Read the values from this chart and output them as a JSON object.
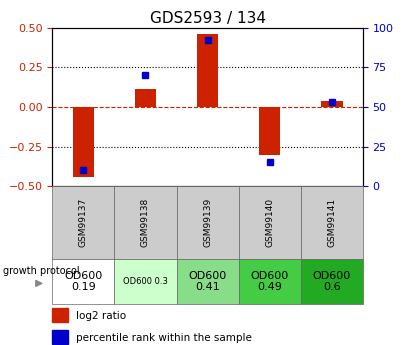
{
  "title": "GDS2593 / 134",
  "samples": [
    "GSM99137",
    "GSM99138",
    "GSM99139",
    "GSM99140",
    "GSM99141"
  ],
  "log2_ratio": [
    -0.44,
    0.11,
    0.46,
    -0.3,
    0.04
  ],
  "percentile_rank": [
    10,
    70,
    92,
    15,
    53
  ],
  "ylim_left": [
    -0.5,
    0.5
  ],
  "ylim_right": [
    0,
    100
  ],
  "yticks_left": [
    -0.5,
    -0.25,
    0,
    0.25,
    0.5
  ],
  "yticks_right": [
    0,
    25,
    50,
    75,
    100
  ],
  "bar_color": "#cc2200",
  "dot_color": "#0000cc",
  "growth_protocol": [
    "OD600\n0.19",
    "OD600 0.3",
    "OD600\n0.41",
    "OD600\n0.49",
    "OD600\n0.6"
  ],
  "proto_colors": [
    "#ffffff",
    "#ccffcc",
    "#88dd88",
    "#44cc44",
    "#22aa22"
  ],
  "proto_fontsizes": [
    8,
    6,
    8,
    8,
    8
  ],
  "title_fontsize": 11,
  "tick_fontsize": 8,
  "sample_fontsize": 6.5,
  "legend_fontsize": 7.5,
  "label_fontsize": 7
}
